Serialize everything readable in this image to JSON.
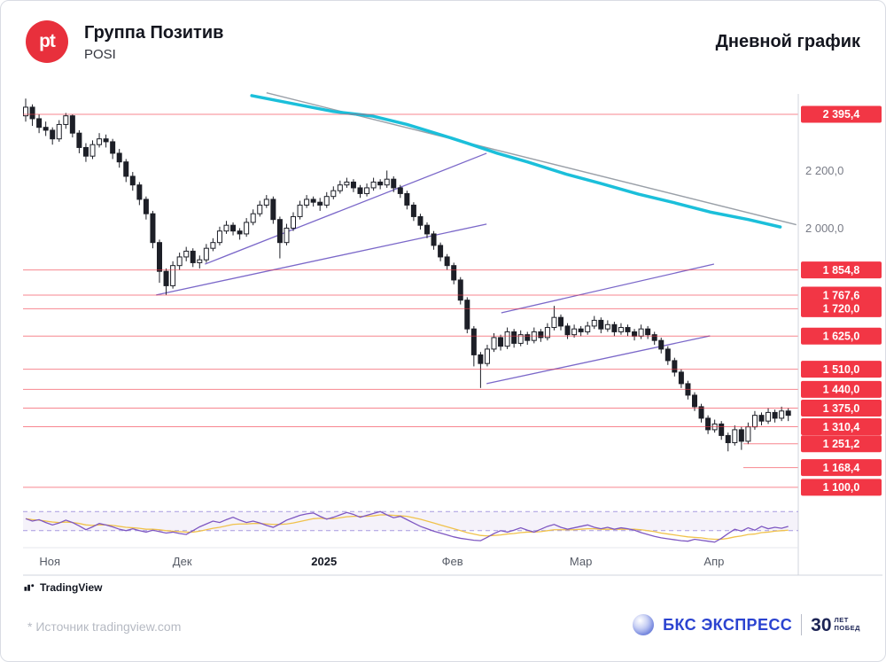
{
  "header": {
    "logo_text": "pt",
    "title": "Группа Позитив",
    "ticker": "POSI",
    "right_title": "Дневной график"
  },
  "attribution": {
    "tradingview_label": "TradingView"
  },
  "footer": {
    "source_note": "* Источник tradingview.com",
    "brand": "БКС ЭКСПРЕСС",
    "brand_badge_number": "30",
    "brand_badge_line1": "ЛЕТ",
    "brand_badge_line2": "ПОБЕД"
  },
  "colors": {
    "level_line": "#f23645",
    "level_label_bg": "#f23645",
    "level_label_text": "#ffffff",
    "candle": "#1d1f27",
    "ma_cyan": "#1bbfda",
    "grey_line": "#9aa0a8",
    "trendline": "#7b68c9",
    "osc_purple": "#7e57c2",
    "osc_yellow": "#f0c24b",
    "axis_line": "#d1d4dc",
    "axis_text": "#787b86"
  },
  "chart_data": {
    "type": "candlestick",
    "instrument": "POSI",
    "timeframe_label": "Дневной график",
    "y_axis": {
      "top_price": 2466,
      "bottom_price": 1072,
      "grey_labels": [
        {
          "text": "2 200,0",
          "price": 2200
        },
        {
          "text": "2 000,0",
          "price": 2000
        }
      ]
    },
    "x_axis": {
      "labels": [
        {
          "text": "Ноя",
          "idx": 3.6,
          "strong": false
        },
        {
          "text": "Дек",
          "idx": 23.4,
          "strong": false
        },
        {
          "text": "2025",
          "idx": 44.6,
          "strong": true
        },
        {
          "text": "Фев",
          "idx": 63.8,
          "strong": false
        },
        {
          "text": "Мар",
          "idx": 83.0,
          "strong": false
        },
        {
          "text": "Апр",
          "idx": 102.9,
          "strong": false
        }
      ]
    },
    "levels": [
      {
        "label": "2 395,4",
        "price": 2395.4,
        "partial": false
      },
      {
        "label": "1 854,8",
        "price": 1854.8,
        "partial": false
      },
      {
        "label": "1 767,6",
        "price": 1767.6,
        "partial": false
      },
      {
        "label": "1 720,0",
        "price": 1720.0,
        "partial": false
      },
      {
        "label": "1 625,0",
        "price": 1625.0,
        "partial": false
      },
      {
        "label": "1 510,0",
        "price": 1510.0,
        "partial": false
      },
      {
        "label": "1 440,0",
        "price": 1440.0,
        "partial": false
      },
      {
        "label": "1 375,0",
        "price": 1375.0,
        "partial": false
      },
      {
        "label": "1 310,4",
        "price": 1310.4,
        "partial": false
      },
      {
        "label": "1 251,2",
        "price": 1251.2,
        "partial": true
      },
      {
        "label": "1 168,4",
        "price": 1168.4,
        "partial": true
      },
      {
        "label": "1 100,0",
        "price": 1100.0,
        "partial": false
      }
    ],
    "candles": [
      [
        2390,
        2450,
        2370,
        2420
      ],
      [
        2420,
        2430,
        2355,
        2380
      ],
      [
        2380,
        2395,
        2330,
        2350
      ],
      [
        2350,
        2370,
        2320,
        2340
      ],
      [
        2340,
        2350,
        2290,
        2310
      ],
      [
        2310,
        2375,
        2300,
        2360
      ],
      [
        2360,
        2400,
        2345,
        2390
      ],
      [
        2390,
        2395,
        2315,
        2330
      ],
      [
        2330,
        2340,
        2260,
        2280
      ],
      [
        2280,
        2295,
        2230,
        2250
      ],
      [
        2250,
        2305,
        2240,
        2290
      ],
      [
        2290,
        2330,
        2280,
        2310
      ],
      [
        2310,
        2325,
        2280,
        2300
      ],
      [
        2300,
        2310,
        2240,
        2260
      ],
      [
        2260,
        2275,
        2210,
        2230
      ],
      [
        2230,
        2240,
        2160,
        2180
      ],
      [
        2180,
        2195,
        2130,
        2150
      ],
      [
        2150,
        2160,
        2080,
        2100
      ],
      [
        2100,
        2110,
        2030,
        2050
      ],
      [
        2050,
        2060,
        1930,
        1950
      ],
      [
        1950,
        1960,
        1810,
        1850
      ],
      [
        1850,
        1860,
        1768,
        1800
      ],
      [
        1800,
        1885,
        1790,
        1870
      ],
      [
        1870,
        1915,
        1855,
        1900
      ],
      [
        1900,
        1935,
        1885,
        1920
      ],
      [
        1920,
        1930,
        1865,
        1880
      ],
      [
        1880,
        1905,
        1860,
        1890
      ],
      [
        1890,
        1945,
        1880,
        1930
      ],
      [
        1930,
        1965,
        1920,
        1950
      ],
      [
        1950,
        2005,
        1940,
        1990
      ],
      [
        1990,
        2025,
        1980,
        2010
      ],
      [
        2010,
        2020,
        1975,
        1990
      ],
      [
        1990,
        2000,
        1960,
        1980
      ],
      [
        1980,
        2035,
        1970,
        2020
      ],
      [
        2020,
        2065,
        2010,
        2050
      ],
      [
        2050,
        2095,
        2040,
        2080
      ],
      [
        2080,
        2115,
        2070,
        2100
      ],
      [
        2100,
        2110,
        2015,
        2030
      ],
      [
        2030,
        2040,
        1895,
        1950
      ],
      [
        1950,
        2015,
        1940,
        2000
      ],
      [
        2000,
        2055,
        1990,
        2040
      ],
      [
        2040,
        2095,
        2030,
        2080
      ],
      [
        2080,
        2115,
        2070,
        2100
      ],
      [
        2100,
        2110,
        2075,
        2090
      ],
      [
        2090,
        2105,
        2060,
        2080
      ],
      [
        2080,
        2125,
        2070,
        2110
      ],
      [
        2110,
        2145,
        2100,
        2130
      ],
      [
        2130,
        2165,
        2120,
        2150
      ],
      [
        2150,
        2175,
        2140,
        2160
      ],
      [
        2160,
        2170,
        2125,
        2140
      ],
      [
        2140,
        2150,
        2105,
        2120
      ],
      [
        2120,
        2155,
        2110,
        2140
      ],
      [
        2140,
        2175,
        2130,
        2160
      ],
      [
        2160,
        2170,
        2135,
        2150
      ],
      [
        2150,
        2200,
        2140,
        2170
      ],
      [
        2170,
        2180,
        2125,
        2140
      ],
      [
        2140,
        2150,
        2105,
        2120
      ],
      [
        2120,
        2130,
        2065,
        2080
      ],
      [
        2080,
        2090,
        2025,
        2040
      ],
      [
        2040,
        2050,
        1995,
        2010
      ],
      [
        2010,
        2020,
        1965,
        1980
      ],
      [
        1980,
        1990,
        1925,
        1940
      ],
      [
        1940,
        1950,
        1885,
        1900
      ],
      [
        1900,
        1910,
        1855,
        1870
      ],
      [
        1870,
        1880,
        1805,
        1820
      ],
      [
        1820,
        1830,
        1735,
        1750
      ],
      [
        1750,
        1760,
        1635,
        1650
      ],
      [
        1650,
        1660,
        1520,
        1560
      ],
      [
        1560,
        1570,
        1445,
        1530
      ],
      [
        1530,
        1595,
        1520,
        1580
      ],
      [
        1580,
        1635,
        1570,
        1620
      ],
      [
        1620,
        1630,
        1575,
        1590
      ],
      [
        1590,
        1655,
        1580,
        1640
      ],
      [
        1640,
        1650,
        1585,
        1600
      ],
      [
        1600,
        1645,
        1590,
        1630
      ],
      [
        1630,
        1640,
        1595,
        1610
      ],
      [
        1610,
        1655,
        1600,
        1640
      ],
      [
        1640,
        1650,
        1605,
        1620
      ],
      [
        1620,
        1670,
        1610,
        1655
      ],
      [
        1655,
        1730,
        1645,
        1690
      ],
      [
        1690,
        1700,
        1645,
        1660
      ],
      [
        1660,
        1670,
        1615,
        1630
      ],
      [
        1630,
        1665,
        1620,
        1650
      ],
      [
        1650,
        1660,
        1625,
        1640
      ],
      [
        1640,
        1675,
        1630,
        1660
      ],
      [
        1660,
        1695,
        1650,
        1680
      ],
      [
        1680,
        1690,
        1635,
        1650
      ],
      [
        1650,
        1680,
        1640,
        1665
      ],
      [
        1665,
        1675,
        1625,
        1640
      ],
      [
        1640,
        1670,
        1630,
        1655
      ],
      [
        1655,
        1665,
        1625,
        1640
      ],
      [
        1640,
        1650,
        1610,
        1625
      ],
      [
        1625,
        1665,
        1615,
        1650
      ],
      [
        1650,
        1660,
        1615,
        1630
      ],
      [
        1630,
        1640,
        1595,
        1610
      ],
      [
        1610,
        1620,
        1565,
        1580
      ],
      [
        1580,
        1590,
        1525,
        1540
      ],
      [
        1540,
        1550,
        1485,
        1500
      ],
      [
        1500,
        1510,
        1445,
        1460
      ],
      [
        1460,
        1470,
        1405,
        1420
      ],
      [
        1420,
        1430,
        1365,
        1380
      ],
      [
        1380,
        1390,
        1325,
        1340
      ],
      [
        1340,
        1350,
        1285,
        1300
      ],
      [
        1300,
        1335,
        1290,
        1320
      ],
      [
        1320,
        1330,
        1265,
        1280
      ],
      [
        1280,
        1290,
        1225,
        1255
      ],
      [
        1255,
        1315,
        1245,
        1300
      ],
      [
        1300,
        1310,
        1230,
        1260
      ],
      [
        1260,
        1325,
        1250,
        1310
      ],
      [
        1310,
        1365,
        1300,
        1350
      ],
      [
        1350,
        1360,
        1315,
        1330
      ],
      [
        1330,
        1375,
        1320,
        1360
      ],
      [
        1360,
        1370,
        1325,
        1340
      ],
      [
        1340,
        1380,
        1330,
        1365
      ],
      [
        1365,
        1375,
        1330,
        1350
      ]
    ],
    "ma_cyan": [
      [
        33.8,
        2460
      ],
      [
        40,
        2432
      ],
      [
        46,
        2405
      ],
      [
        51.9,
        2389
      ],
      [
        57,
        2360
      ],
      [
        62.5,
        2321
      ],
      [
        66,
        2295
      ],
      [
        70.5,
        2260
      ],
      [
        75,
        2230
      ],
      [
        81,
        2186
      ],
      [
        86,
        2155
      ],
      [
        91.6,
        2118
      ],
      [
        97,
        2088
      ],
      [
        102.3,
        2056
      ],
      [
        108,
        2030
      ],
      [
        112.8,
        2004
      ]
    ],
    "grey_line": [
      [
        36,
        2470
      ],
      [
        115.2,
        2012
      ]
    ],
    "trendlines": [
      [
        19.5,
        1768,
        68.9,
        2014
      ],
      [
        26.8,
        1875,
        68.9,
        2260
      ],
      [
        68.9,
        1460,
        102.3,
        1626
      ],
      [
        71.1,
        1706,
        102.9,
        1875
      ]
    ],
    "oscillator": {
      "band": [
        30,
        70
      ],
      "purple": [
        55,
        50,
        53,
        47,
        42,
        46,
        52,
        47,
        40,
        32,
        38,
        45,
        42,
        38,
        33,
        30,
        34,
        30,
        27,
        31,
        28,
        25,
        27,
        24,
        22,
        30,
        38,
        44,
        50,
        47,
        53,
        58,
        52,
        47,
        50,
        46,
        41,
        37,
        44,
        52,
        57,
        62,
        65,
        67,
        60,
        54,
        58,
        63,
        68,
        64,
        58,
        62,
        66,
        70,
        63,
        57,
        60,
        53,
        46,
        39,
        34,
        29,
        25,
        21,
        17,
        14,
        12,
        10,
        9,
        16,
        24,
        30,
        27,
        31,
        36,
        31,
        27,
        33,
        39,
        43,
        37,
        33,
        36,
        39,
        42,
        37,
        34,
        37,
        33,
        36,
        34,
        31,
        26,
        22,
        18,
        15,
        13,
        11,
        9,
        8,
        12,
        10,
        8,
        6,
        14,
        24,
        33,
        29,
        36,
        31,
        39,
        34,
        37,
        35,
        39
      ],
      "yellow": [
        55,
        53,
        52,
        50,
        48,
        47,
        48,
        47,
        45,
        42,
        41,
        42,
        42,
        41,
        39,
        37,
        36,
        35,
        33,
        33,
        32,
        30,
        29,
        28,
        27,
        27,
        29,
        32,
        35,
        37,
        40,
        43,
        44,
        44,
        45,
        45,
        44,
        43,
        43,
        44,
        46,
        49,
        52,
        55,
        56,
        55,
        55,
        57,
        59,
        60,
        60,
        60,
        61,
        63,
        63,
        62,
        61,
        60,
        57,
        54,
        50,
        46,
        42,
        38,
        34,
        30,
        26,
        23,
        20,
        19,
        20,
        21,
        23,
        24,
        26,
        27,
        27,
        28,
        30,
        32,
        32,
        32,
        32,
        33,
        34,
        34,
        33,
        33,
        33,
        33,
        33,
        33,
        32,
        30,
        28,
        25,
        23,
        21,
        19,
        17,
        16,
        15,
        13,
        12,
        12,
        14,
        17,
        19,
        22,
        23,
        26,
        27,
        29,
        30,
        31
      ]
    }
  }
}
